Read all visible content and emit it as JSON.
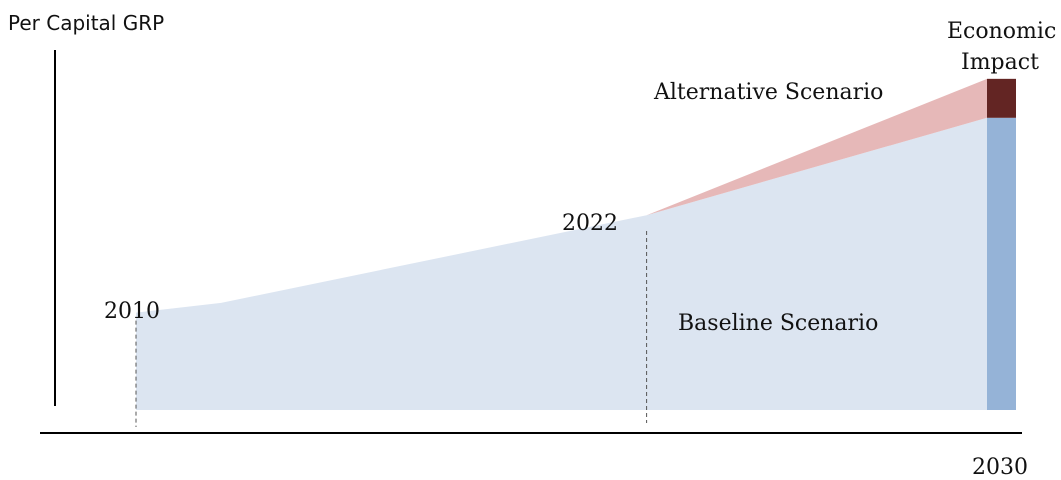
{
  "chart_data": {
    "type": "area",
    "ylabel": "Per Capital GRP",
    "year_labels": {
      "start": "2010",
      "mid": "2022",
      "end": "2030"
    },
    "series": [
      {
        "name": "Baseline Scenario",
        "x": [
          2010,
          2012,
          2022,
          2030
        ],
        "values": [
          1.0,
          1.1,
          2.0,
          3.0
        ]
      },
      {
        "name": "Alternative Scenario",
        "x": [
          2022,
          2030
        ],
        "values": [
          2.0,
          3.4
        ]
      }
    ],
    "impact": {
      "label_line1": "Economic",
      "label_line2": "Impact",
      "value": 0.4
    },
    "ylim": [
      0,
      3.5
    ],
    "colors": {
      "baseline_area": "#dce5f1",
      "alternative_area": "#e6b8b8",
      "baseline_bar": "#95b3d7",
      "impact_bar": "#632523",
      "axis": "#000000",
      "dashed": "#555555"
    }
  }
}
